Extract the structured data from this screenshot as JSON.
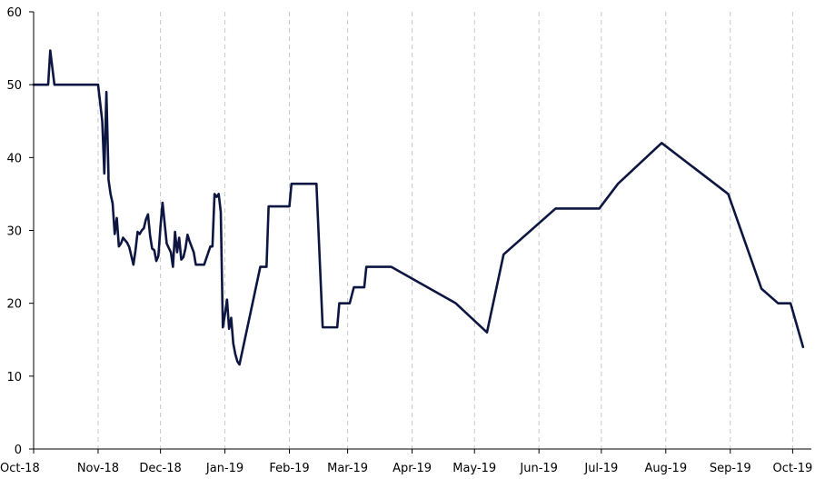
{
  "chart_data": {
    "type": "line",
    "title": "",
    "xlabel": "",
    "ylabel": "",
    "ylim": [
      0,
      60
    ],
    "yticks": [
      0,
      10,
      20,
      30,
      40,
      50,
      60
    ],
    "xlim": [
      "2018-10-01",
      "2019-10-10"
    ],
    "xticks": [
      {
        "date": "2018-10-01",
        "label": "Oct-18"
      },
      {
        "date": "2018-11-01",
        "label": "Nov-18"
      },
      {
        "date": "2018-12-01",
        "label": "Dec-18"
      },
      {
        "date": "2019-01-01",
        "label": "Jan-19"
      },
      {
        "date": "2019-02-01",
        "label": "Feb-19"
      },
      {
        "date": "2019-03-01",
        "label": "Mar-19"
      },
      {
        "date": "2019-04-01",
        "label": "Apr-19"
      },
      {
        "date": "2019-05-01",
        "label": "May-19"
      },
      {
        "date": "2019-06-01",
        "label": "Jun-19"
      },
      {
        "date": "2019-07-01",
        "label": "Jul-19"
      },
      {
        "date": "2019-08-01",
        "label": "Aug-19"
      },
      {
        "date": "2019-09-01",
        "label": "Sep-19"
      },
      {
        "date": "2019-10-01",
        "label": "Oct-19"
      }
    ],
    "grid": {
      "x": true,
      "y": false
    },
    "legend": "none",
    "series_color": "#0d1640",
    "series": [
      {
        "points": [
          [
            "2018-10-01",
            50
          ],
          [
            "2018-10-08",
            50
          ],
          [
            "2018-10-09",
            54.7
          ],
          [
            "2018-10-11",
            50
          ],
          [
            "2018-10-25",
            50
          ],
          [
            "2018-11-01",
            50
          ],
          [
            "2018-11-02",
            47.5
          ],
          [
            "2018-11-03",
            45
          ],
          [
            "2018-11-04",
            37.8
          ],
          [
            "2018-11-05",
            49
          ],
          [
            "2018-11-06",
            37.6
          ],
          [
            "2018-11-06",
            37
          ],
          [
            "2018-11-07",
            35
          ],
          [
            "2018-11-08",
            33.7
          ],
          [
            "2018-11-09",
            29.5
          ],
          [
            "2018-11-10",
            31.7
          ],
          [
            "2018-11-11",
            27.8
          ],
          [
            "2018-11-12",
            28.2
          ],
          [
            "2018-11-13",
            29
          ],
          [
            "2018-11-15",
            28.3
          ],
          [
            "2018-11-16",
            27.7
          ],
          [
            "2018-11-18",
            25.3
          ],
          [
            "2018-11-19",
            27.3
          ],
          [
            "2018-11-20",
            29.8
          ],
          [
            "2018-11-21",
            29.5
          ],
          [
            "2018-11-22",
            30
          ],
          [
            "2018-11-23",
            30.3
          ],
          [
            "2018-11-24",
            31.5
          ],
          [
            "2018-11-25",
            32.2
          ],
          [
            "2018-11-26",
            29.3
          ],
          [
            "2018-11-27",
            27.5
          ],
          [
            "2018-11-28",
            27.3
          ],
          [
            "2018-11-29",
            25.8
          ],
          [
            "2018-11-30",
            26.5
          ],
          [
            "2018-12-01",
            30.5
          ],
          [
            "2018-12-02",
            33.8
          ],
          [
            "2018-12-03",
            31
          ],
          [
            "2018-12-04",
            28.2
          ],
          [
            "2018-12-06",
            27
          ],
          [
            "2018-12-07",
            25
          ],
          [
            "2018-12-08",
            29.8
          ],
          [
            "2018-12-09",
            27
          ],
          [
            "2018-12-10",
            29
          ],
          [
            "2018-12-11",
            26
          ],
          [
            "2018-12-12",
            26.3
          ],
          [
            "2018-12-13",
            27.5
          ],
          [
            "2018-12-14",
            29.4
          ],
          [
            "2018-12-15",
            28.5
          ],
          [
            "2018-12-17",
            27
          ],
          [
            "2018-12-18",
            25.3
          ],
          [
            "2018-12-22",
            25.3
          ],
          [
            "2018-12-25",
            27.8
          ],
          [
            "2018-12-26",
            27.8
          ],
          [
            "2018-12-27",
            35
          ],
          [
            "2018-12-28",
            34.6
          ],
          [
            "2018-12-29",
            35
          ],
          [
            "2018-12-30",
            32.5
          ],
          [
            "2018-12-31",
            16.7
          ],
          [
            "2019-01-01",
            18.5
          ],
          [
            "2019-01-02",
            20.5
          ],
          [
            "2019-01-03",
            16.5
          ],
          [
            "2019-01-04",
            18
          ],
          [
            "2019-01-05",
            14.5
          ],
          [
            "2019-01-06",
            13
          ],
          [
            "2019-01-07",
            12
          ],
          [
            "2019-01-08",
            11.6
          ],
          [
            "2019-01-18",
            25
          ],
          [
            "2019-01-21",
            25
          ],
          [
            "2019-01-22",
            33.3
          ],
          [
            "2019-02-01",
            33.3
          ],
          [
            "2019-02-02",
            36.4
          ],
          [
            "2019-02-14",
            36.4
          ],
          [
            "2019-02-17",
            16.7
          ],
          [
            "2019-02-24",
            16.7
          ],
          [
            "2019-02-25",
            20
          ],
          [
            "2019-03-02",
            20
          ],
          [
            "2019-03-04",
            22.2
          ],
          [
            "2019-03-09",
            22.2
          ],
          [
            "2019-03-10",
            25
          ],
          [
            "2019-03-22",
            25
          ],
          [
            "2019-04-22",
            20
          ],
          [
            "2019-05-07",
            16
          ],
          [
            "2019-05-15",
            26.7
          ],
          [
            "2019-06-09",
            33
          ],
          [
            "2019-06-30",
            33
          ],
          [
            "2019-07-09",
            36.4
          ],
          [
            "2019-07-30",
            42
          ],
          [
            "2019-08-31",
            35
          ],
          [
            "2019-09-16",
            22
          ],
          [
            "2019-09-24",
            20
          ],
          [
            "2019-09-30",
            20
          ],
          [
            "2019-10-06",
            14
          ]
        ]
      }
    ]
  }
}
